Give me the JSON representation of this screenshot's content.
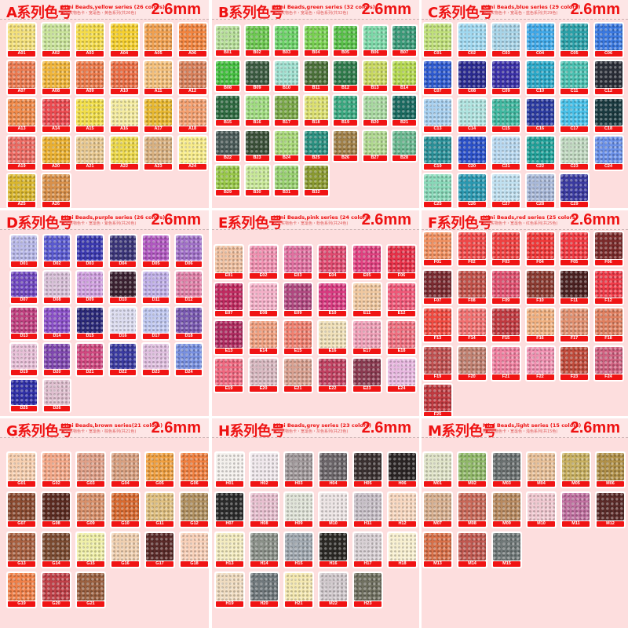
{
  "label_color": "#f01414",
  "title_color": "#ee1111",
  "background": "#fddede",
  "panels": [
    {
      "title": "A系列色号",
      "subtitle_en": "Mini Beads,yellow series (26 colors)",
      "subtitle_cn": "拼豆实物色卡・宽毫色・黄色系列(共26色)",
      "size": "2.6mm",
      "swatches": [
        [
          "A01",
          "#f3e07a"
        ],
        [
          "A02",
          "#c9e39a"
        ],
        [
          "A03",
          "#f5dc4a"
        ],
        [
          "A04",
          "#f5cf2e"
        ],
        [
          "A05",
          "#f0a050"
        ],
        [
          "A06",
          "#f2843e"
        ],
        [
          "A07",
          "#ec7a50"
        ],
        [
          "A08",
          "#f0b53a"
        ],
        [
          "A09",
          "#ec7a4a"
        ],
        [
          "A10",
          "#eb6e45"
        ],
        [
          "A11",
          "#f3bf7a"
        ],
        [
          "A12",
          "#d8805a"
        ],
        [
          "A13",
          "#f08a4a"
        ],
        [
          "A14",
          "#ec4a50"
        ],
        [
          "A15",
          "#f2df4a"
        ],
        [
          "A16",
          "#f5eca0"
        ],
        [
          "A17",
          "#e8b830"
        ],
        [
          "A18",
          "#f4a070"
        ],
        [
          "A19",
          "#ec6a62"
        ],
        [
          "A20",
          "#eab030"
        ],
        [
          "A21",
          "#e8c890"
        ],
        [
          "A22",
          "#ecd84a"
        ],
        [
          "A23",
          "#d8b080"
        ],
        [
          "A24",
          "#f8ec8a"
        ],
        [
          "A25",
          "#d9b62e"
        ],
        [
          "A26",
          "#d8904a"
        ]
      ]
    },
    {
      "title": "B系列色号",
      "subtitle_en": "Mini Beads,green series (32 colors)",
      "subtitle_cn": "拼豆实物色卡・宽毫色・绿色系列(共32色)",
      "size": "2.6mm",
      "swatches": [
        [
          "B01",
          "#b8e09a"
        ],
        [
          "B02",
          "#6cc850"
        ],
        [
          "B03",
          "#6cd268"
        ],
        [
          "B04",
          "#78d050"
        ],
        [
          "B05",
          "#58c048"
        ],
        [
          "B06",
          "#7cd8a8"
        ],
        [
          "B07",
          "#3a9a78"
        ],
        [
          "B08",
          "#44c040"
        ],
        [
          "B09",
          "#3a5a40"
        ],
        [
          "B10",
          "#a0e0d0"
        ],
        [
          "B11",
          "#4a7038"
        ],
        [
          "B12",
          "#2e7a4a"
        ],
        [
          "B13",
          "#c8d860"
        ],
        [
          "B14",
          "#b4d850"
        ],
        [
          "B15",
          "#2e6a40"
        ],
        [
          "B16",
          "#a0dc80"
        ],
        [
          "B17",
          "#7aa848"
        ],
        [
          "B18",
          "#dce070"
        ],
        [
          "B19",
          "#3aa880"
        ],
        [
          "B20",
          "#a8d8a0"
        ],
        [
          "B21",
          "#1a6a60"
        ],
        [
          "B22",
          "#4a5a58"
        ],
        [
          "B23",
          "#3a5038"
        ],
        [
          "B24",
          "#a8d878"
        ],
        [
          "B25",
          "#2a9080"
        ],
        [
          "B26",
          "#a08048"
        ],
        [
          "B27",
          "#b0d890"
        ],
        [
          "B28",
          "#6ab890"
        ],
        [
          "B29",
          "#98c848"
        ],
        [
          "B30",
          "#c8e898"
        ],
        [
          "B31",
          "#98d070"
        ],
        [
          "B32",
          "#8a9a30"
        ]
      ]
    },
    {
      "title": "C系列色号",
      "subtitle_en": "Mini Beads,blue series (29 colors)",
      "subtitle_cn": "拼豆实物色卡・宽毫色・蓝色系列(共29色)",
      "size": "2.6mm",
      "swatches": [
        [
          "C01",
          "#c0e07a"
        ],
        [
          "C02",
          "#a0d8f0"
        ],
        [
          "C03",
          "#a8d4e8"
        ],
        [
          "C04",
          "#40a8e8"
        ],
        [
          "C05",
          "#2aa0a8"
        ],
        [
          "C06",
          "#3a78e0"
        ],
        [
          "C07",
          "#2e5ad0"
        ],
        [
          "C08",
          "#2a2a90"
        ],
        [
          "C09",
          "#3a30a8"
        ],
        [
          "C10",
          "#2aa8c8"
        ],
        [
          "C11",
          "#4ac0b0"
        ],
        [
          "C12",
          "#2a2e38"
        ],
        [
          "C13",
          "#a8d0f0"
        ],
        [
          "C14",
          "#b0e4e0"
        ],
        [
          "C15",
          "#40b8a0"
        ],
        [
          "C16",
          "#2a3aa0"
        ],
        [
          "C17",
          "#48c0e8"
        ],
        [
          "C18",
          "#1a3a40"
        ],
        [
          "C19",
          "#2a9098"
        ],
        [
          "C20",
          "#2a50c8"
        ],
        [
          "C21",
          "#b8d8f0"
        ],
        [
          "C22",
          "#20a098"
        ],
        [
          "C23",
          "#c0d8c0"
        ],
        [
          "C24",
          "#6a90e8"
        ],
        [
          "C25",
          "#88d8b8"
        ],
        [
          "C26",
          "#2a98b0"
        ],
        [
          "C27",
          "#c0e0f0"
        ],
        [
          "C28",
          "#a8b8d8"
        ],
        [
          "C29",
          "#3a3aa0"
        ]
      ]
    },
    {
      "title": "D系列色号",
      "subtitle_en": "Mini Beads,purple series (26 colors)",
      "subtitle_cn": "拼豆实物色卡・宽毫色・紫色系列(共26色)",
      "size": "2.6mm",
      "swatches": [
        [
          "D01",
          "#b8b8e8"
        ],
        [
          "D02",
          "#5a5ad0"
        ],
        [
          "D03",
          "#3a38b0"
        ],
        [
          "D04",
          "#3a3478"
        ],
        [
          "D05",
          "#b058c0"
        ],
        [
          "D06",
          "#a070c8"
        ],
        [
          "D07",
          "#7048c0"
        ],
        [
          "D08",
          "#d8c0d8"
        ],
        [
          "D09",
          "#d0a0e0"
        ],
        [
          "D10",
          "#3a2030"
        ],
        [
          "D11",
          "#c0b0e8"
        ],
        [
          "D12",
          "#e080a8"
        ],
        [
          "D13",
          "#c04080"
        ],
        [
          "D14",
          "#8a50c8"
        ],
        [
          "D15",
          "#2a2878"
        ],
        [
          "D16",
          "#dcdcf0"
        ],
        [
          "D17",
          "#c0c8f0"
        ],
        [
          "D18",
          "#7858b0"
        ],
        [
          "D19",
          "#e8c0d8"
        ],
        [
          "D20",
          "#8048b0"
        ],
        [
          "D21",
          "#d04880"
        ],
        [
          "D22",
          "#3a3aa0"
        ],
        [
          "D23",
          "#e0c0e0"
        ],
        [
          "D24",
          "#7890e0"
        ],
        [
          "D25",
          "#3030a8"
        ],
        [
          "D26",
          "#e0c0d0"
        ]
      ]
    },
    {
      "title": "E系列色号",
      "subtitle_en": "Mini Beads,pink series (24 colors)",
      "subtitle_cn": "拼豆实物色卡・宽毫色・粉色系列(共24色)",
      "size": "2.6mm",
      "swatches": [
        [
          "E01",
          "#f0c0a0"
        ],
        [
          "E02",
          "#f090b0"
        ],
        [
          "E03",
          "#e070a0"
        ],
        [
          "E04",
          "#e04a70"
        ],
        [
          "E05",
          "#e04080"
        ],
        [
          "F06",
          "#e83048"
        ],
        [
          "E07",
          "#c02a60"
        ],
        [
          "E08",
          "#f4b0c8"
        ],
        [
          "E09",
          "#b04880"
        ],
        [
          "E10",
          "#d83a80"
        ],
        [
          "E11",
          "#f0c8a0"
        ],
        [
          "E12",
          "#f05878"
        ],
        [
          "E13",
          "#b02a60"
        ],
        [
          "E14",
          "#f0a080"
        ],
        [
          "E15",
          "#f08070"
        ],
        [
          "E16",
          "#f0e0b8"
        ],
        [
          "E17",
          "#f0a0b8"
        ],
        [
          "E18",
          "#f07080"
        ],
        [
          "E19",
          "#f06880"
        ],
        [
          "E20",
          "#d8b8c0"
        ],
        [
          "E21",
          "#d8a090"
        ],
        [
          "E22",
          "#c04060"
        ],
        [
          "E23",
          "#8a3a50"
        ],
        [
          "E24",
          "#e8b8e0"
        ]
      ]
    },
    {
      "title": "F系列色号",
      "subtitle_en": "Mini Beads,red series (25 colors)",
      "subtitle_cn": "拼豆实物色卡・宽毫色・红色系列(共25色)",
      "size": "2.6mm",
      "swatches": [
        [
          "F01",
          "#f09060"
        ],
        [
          "F02",
          "#f04848"
        ],
        [
          "F03",
          "#f04040"
        ],
        [
          "F04",
          "#f03838"
        ],
        [
          "F05",
          "#f03840"
        ],
        [
          "F06",
          "#7a2a2a"
        ],
        [
          "F07",
          "#7a2a30"
        ],
        [
          "F08",
          "#c05048"
        ],
        [
          "F09",
          "#e05070"
        ],
        [
          "F10",
          "#8a3a30"
        ],
        [
          "F11",
          "#4a2020"
        ],
        [
          "F12",
          "#f03a48"
        ],
        [
          "F13",
          "#f04a40"
        ],
        [
          "F14",
          "#f07070"
        ],
        [
          "F15",
          "#c03a40"
        ],
        [
          "F16",
          "#f0b080"
        ],
        [
          "F17",
          "#e09070"
        ],
        [
          "F18",
          "#e08060"
        ],
        [
          "F19",
          "#c05050"
        ],
        [
          "F20",
          "#c08070"
        ],
        [
          "F21",
          "#f080a0"
        ],
        [
          "F22",
          "#f090b0"
        ],
        [
          "F23",
          "#c04a3a"
        ],
        [
          "F24",
          "#d06080"
        ],
        [
          "F25",
          "#c03a40"
        ]
      ]
    },
    {
      "title": "G系列色号",
      "subtitle_en": "Mini Beads,brown series(21 colors)",
      "subtitle_cn": "拼豆实物色卡・宽毫色・棕色系列(共21色)",
      "size": "2.6mm",
      "swatches": [
        [
          "G01",
          "#f8d0b0"
        ],
        [
          "G02",
          "#f4a888"
        ],
        [
          "G03",
          "#e0a088"
        ],
        [
          "G04",
          "#d8a080"
        ],
        [
          "G05",
          "#f0a040"
        ],
        [
          "G06",
          "#f08040"
        ],
        [
          "G07",
          "#8a4a30"
        ],
        [
          "G08",
          "#5a2a20"
        ],
        [
          "G09",
          "#d8906a"
        ],
        [
          "G10",
          "#d86a30"
        ],
        [
          "G11",
          "#e0c080"
        ],
        [
          "G12",
          "#b09060"
        ],
        [
          "G13",
          "#a86040"
        ],
        [
          "G14",
          "#7a4a30"
        ],
        [
          "G15",
          "#f0f0a8"
        ],
        [
          "G16",
          "#f0d0b0"
        ],
        [
          "G17",
          "#5a2a28"
        ],
        [
          "G18",
          "#f8d0b8"
        ],
        [
          "G19",
          "#f08048"
        ],
        [
          "G20",
          "#c04048"
        ],
        [
          "G21",
          "#9a6040"
        ]
      ]
    },
    {
      "title": "H系列色号",
      "subtitle_en": "Mini Beads,grey series (23 colors)",
      "subtitle_cn": "拼豆实物色卡・宽毫色・灰色系列(共23色)",
      "size": "2.6mm",
      "swatches": [
        [
          "H01",
          "#f4f0ec"
        ],
        [
          "H02",
          "#f0e8ec"
        ],
        [
          "H03",
          "#a0989a"
        ],
        [
          "H04",
          "#6a6468"
        ],
        [
          "H05",
          "#3a3030"
        ],
        [
          "H06",
          "#2a2424"
        ],
        [
          "H07",
          "#2a2a2a"
        ],
        [
          "H08",
          "#e8c0d0"
        ],
        [
          "H09",
          "#e0e4d8"
        ],
        [
          "M10",
          "#ece4e4"
        ],
        [
          "H11",
          "#c8c0c8"
        ],
        [
          "H12",
          "#f8d8c0"
        ],
        [
          "H13",
          "#f4ecc0"
        ],
        [
          "H14",
          "#8a9088"
        ],
        [
          "H15",
          "#a0a8b0"
        ],
        [
          "H16",
          "#2a2824"
        ],
        [
          "H17",
          "#d8d0d4"
        ],
        [
          "H18",
          "#f8f0d0"
        ],
        [
          "H19",
          "#f0dcc0"
        ],
        [
          "H20",
          "#70787c"
        ],
        [
          "H21",
          "#f4e8b0"
        ],
        [
          "M22",
          "#d0c8cc"
        ],
        [
          "H23",
          "#707060"
        ]
      ]
    },
    {
      "title": "M系列色号",
      "subtitle_en": "Mini Beads,light series (15 colors)",
      "subtitle_cn": "拼豆实物色卡・宽毫色・浅色系列(共15色)",
      "size": "2.6mm",
      "swatches": [
        [
          "M01",
          "#e0e4c8"
        ],
        [
          "M02",
          "#90b868"
        ],
        [
          "M03",
          "#6a7070"
        ],
        [
          "M04",
          "#e8c098"
        ],
        [
          "M05",
          "#c8b060"
        ],
        [
          "M06",
          "#b09048"
        ],
        [
          "M07",
          "#d8b090"
        ],
        [
          "M08",
          "#c86858"
        ],
        [
          "M09",
          "#b88a60"
        ],
        [
          "M10",
          "#f0c8d0"
        ],
        [
          "M11",
          "#c070a0"
        ],
        [
          "M12",
          "#5a2a28"
        ],
        [
          "M13",
          "#d87048"
        ],
        [
          "M14",
          "#c05850"
        ],
        [
          "M15",
          "#707878"
        ]
      ]
    }
  ]
}
